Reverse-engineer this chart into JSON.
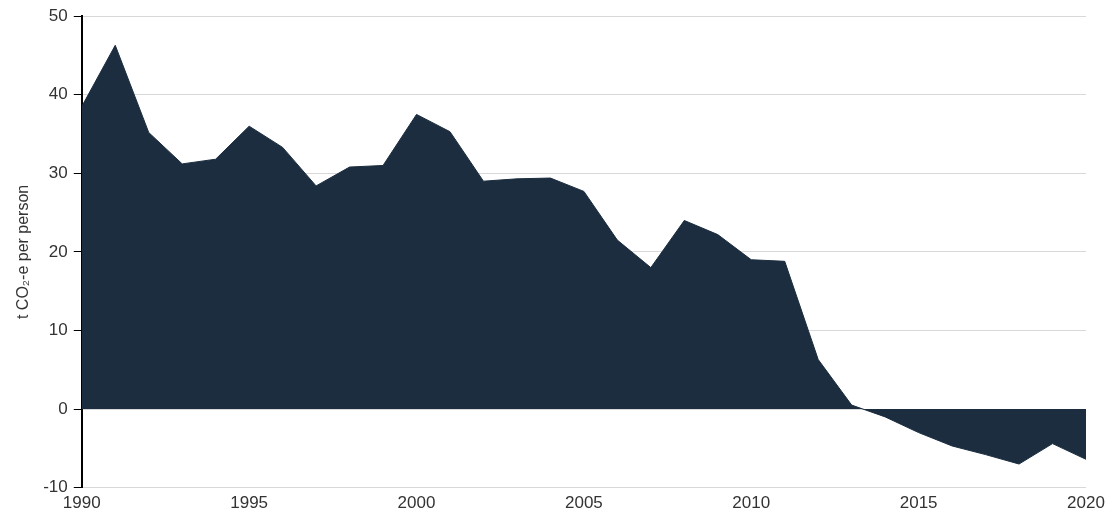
{
  "chart_data": {
    "type": "area",
    "ylabel": "t CO₂-e per person",
    "x": [
      1990,
      1991,
      1992,
      1993,
      1994,
      1995,
      1996,
      1997,
      1998,
      1999,
      2000,
      2001,
      2002,
      2003,
      2004,
      2005,
      2006,
      2007,
      2008,
      2009,
      2010,
      2011,
      2012,
      2013,
      2014,
      2015,
      2016,
      2017,
      2018,
      2019,
      2020
    ],
    "series": [
      {
        "color": "#1b2d3f",
        "values": [
          38.5,
          46.3,
          35.2,
          31.2,
          31.8,
          36,
          33.3,
          28.4,
          30.8,
          31,
          37.5,
          35.3,
          29,
          29.3,
          29.4,
          27.7,
          21.5,
          18,
          24,
          22.2,
          19,
          18.8,
          6.3,
          0.5,
          -1,
          -3,
          -4.7,
          -5.8,
          -7,
          -4.4,
          -6.4
        ]
      }
    ],
    "xlim": [
      1990,
      2020
    ],
    "xticks": [
      1990,
      1995,
      2000,
      2005,
      2010,
      2015,
      2020
    ],
    "ylim": [
      -10,
      50
    ],
    "yticks": [
      -10,
      0,
      10,
      20,
      30,
      40,
      50
    ],
    "grid": "y",
    "legend": false
  }
}
